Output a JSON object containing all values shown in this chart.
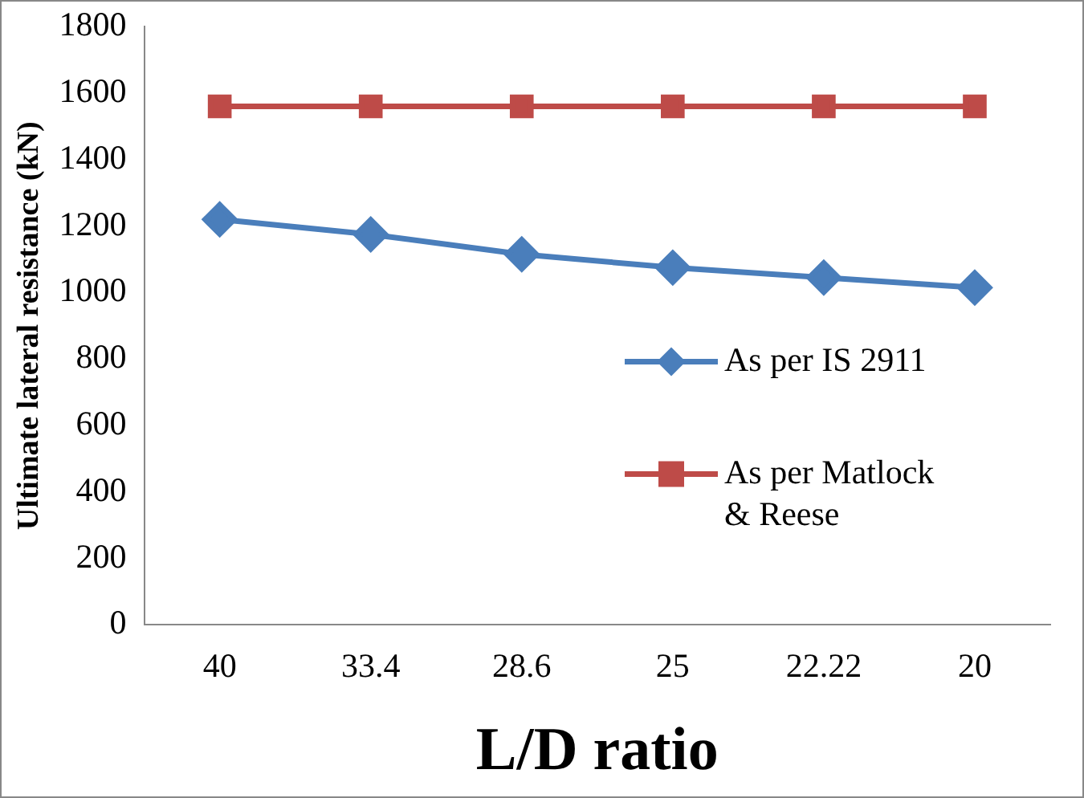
{
  "chart_data": {
    "type": "line",
    "xlabel": "L/D ratio",
    "ylabel": "Ultimate lateral resistance (kN)",
    "categories": [
      "40",
      "33.4",
      "28.6",
      "25",
      "22.22",
      "20"
    ],
    "series": [
      {
        "name": "As per IS 2911",
        "color": "#4a7ebb",
        "marker": "diamond",
        "values": [
          1220,
          1175,
          1115,
          1075,
          1045,
          1015
        ]
      },
      {
        "name": "As per Matlock & Reese",
        "color": "#be4b48",
        "marker": "square",
        "values": [
          1560,
          1560,
          1560,
          1560,
          1560,
          1560
        ]
      }
    ],
    "ylim": [
      0,
      1800
    ],
    "yticks": [
      0,
      200,
      400,
      600,
      800,
      1000,
      1200,
      1400,
      1600,
      1800
    ],
    "grid": false,
    "legend": "right"
  }
}
